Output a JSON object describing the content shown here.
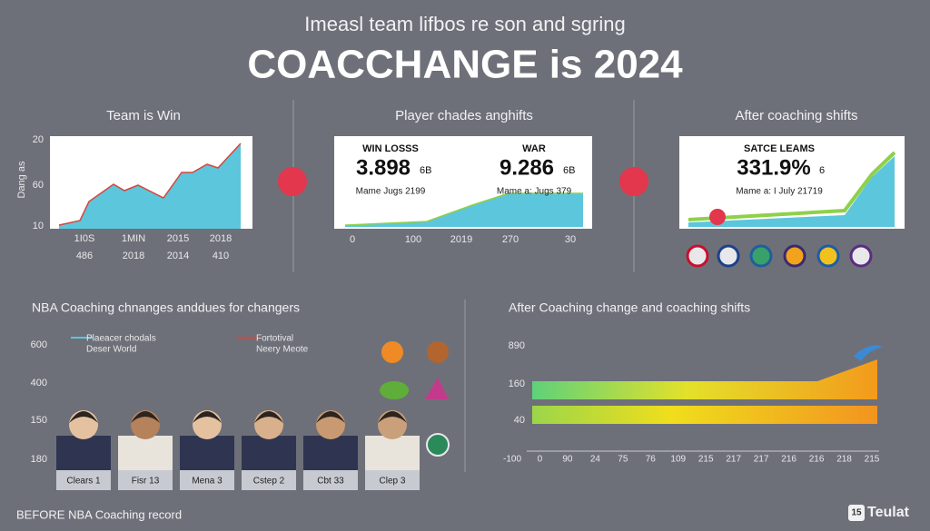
{
  "header": {
    "subtitle": "Imeasl team lifbos re son and sgring",
    "title": "COACCHANGE is 2024"
  },
  "panel1": {
    "title": "Team is Win",
    "y_axis_label": "Dang as",
    "y_labels": [
      "20",
      "60",
      "10"
    ],
    "x_labels_top": [
      "1I0S",
      "1MIN",
      "2015",
      "2018"
    ],
    "x_labels_bottom": [
      "486",
      "2018",
      "2014",
      "410"
    ]
  },
  "panel2": {
    "title": "Player chades anghifts",
    "stats": [
      {
        "label": "WIN LOSSS",
        "value": "3.898",
        "unit": "6B",
        "note": "Mame Jugs 2199"
      },
      {
        "label": "WAR",
        "value": "9.286",
        "unit": "6B",
        "note": "Mame a: Jugs 379"
      }
    ],
    "x_labels": [
      "0",
      "100",
      "2019",
      "270",
      "30"
    ]
  },
  "panel3": {
    "title": "After coaching shifts",
    "label": "SATCE LEAMS",
    "value": "331.9%",
    "unit": "6",
    "note": "Mame a: I July 21719"
  },
  "panel4": {
    "title": "NBA Coaching chnanges anddues for changers",
    "y_labels": [
      "600",
      "400",
      "150",
      "180"
    ],
    "legend": [
      {
        "line1": "Plaeacer chodals",
        "line2": "Deser World"
      },
      {
        "line1": "Fortotival",
        "line2": "Neery Meote"
      }
    ],
    "cards": [
      "Clears 1",
      "Fisr 13",
      "Mena 3",
      "Cstep 2",
      "Cbt 33",
      "Clep 3"
    ]
  },
  "panel5": {
    "title": "After Coaching change and coaching shifts",
    "y_labels": [
      "890",
      "160",
      "40"
    ],
    "x_labels": [
      "-100",
      "0",
      "90",
      "24",
      "75",
      "76",
      "109",
      "215",
      "217",
      "217",
      "216",
      "216",
      "218",
      "215"
    ]
  },
  "footer": {
    "left": "BEFORE NBA Coaching record",
    "logo_badge": "15",
    "logo_text": "Teulat"
  }
}
